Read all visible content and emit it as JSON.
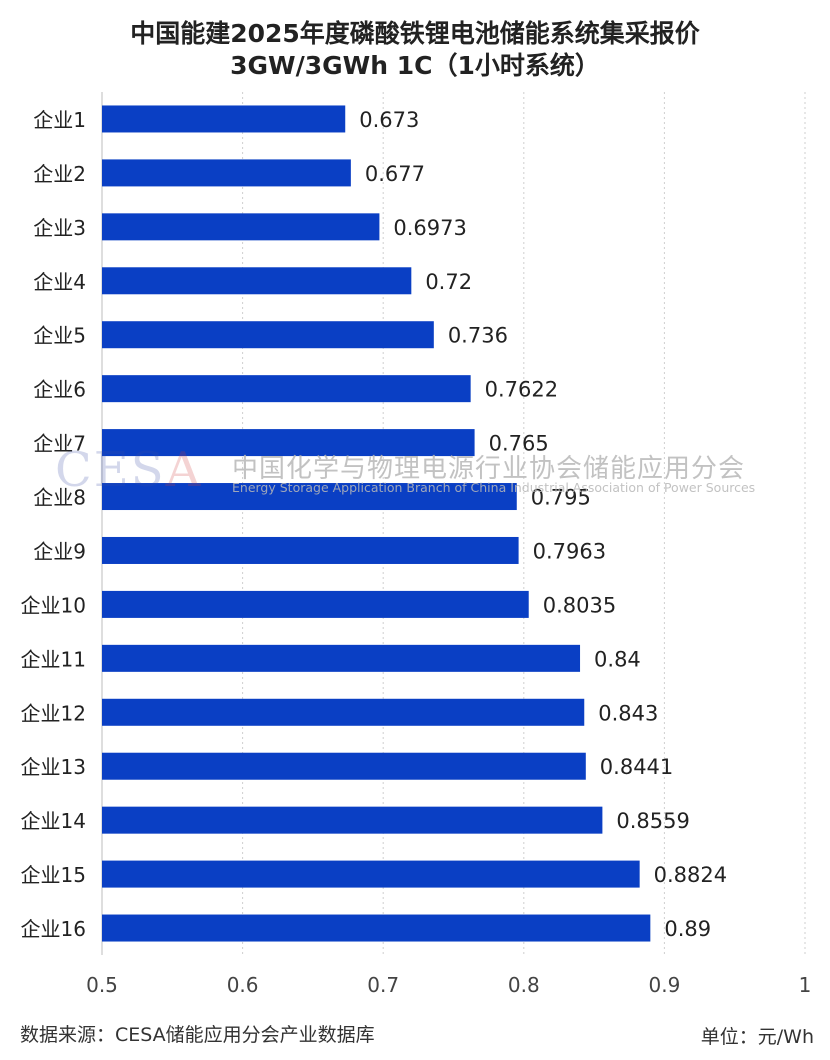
{
  "chart_data": {
    "type": "bar",
    "orientation": "horizontal",
    "title": "中国能建2025年度磷酸铁锂电池储能系统集采报价",
    "subtitle": "3GW/3GWh 1C（1小时系统）",
    "categories": [
      "企业1",
      "企业2",
      "企业3",
      "企业4",
      "企业5",
      "企业6",
      "企业7",
      "企业8",
      "企业9",
      "企业10",
      "企业11",
      "企业12",
      "企业13",
      "企业14",
      "企业15",
      "企业16"
    ],
    "values": [
      0.673,
      0.677,
      0.6973,
      0.72,
      0.736,
      0.7622,
      0.765,
      0.795,
      0.7963,
      0.8035,
      0.84,
      0.843,
      0.8441,
      0.8559,
      0.8824,
      0.89
    ],
    "value_labels": [
      "0.673",
      "0.677",
      "0.6973",
      "0.72",
      "0.736",
      "0.7622",
      "0.765",
      "0.795",
      "0.7963",
      "0.8035",
      "0.84",
      "0.843",
      "0.8441",
      "0.8559",
      "0.8824",
      "0.89"
    ],
    "xlim": [
      0.5,
      1.0
    ],
    "xticks": [
      "0.5",
      "0.6",
      "0.7",
      "0.8",
      "0.9",
      "1"
    ],
    "xtick_values": [
      0.5,
      0.6,
      0.7,
      0.8,
      0.9,
      1.0
    ],
    "grid": "vertical dashed",
    "bar_color": "#0a3fc4"
  },
  "footer": {
    "source": "数据来源：CESA储能应用分会产业数据库",
    "unit": "单位：元/Wh"
  },
  "watermark": {
    "logo": "CESA",
    "cn": "中国化学与物理电源行业协会储能应用分会",
    "en": "Energy Storage Application Branch of China Industrial Association of Power Sources"
  }
}
